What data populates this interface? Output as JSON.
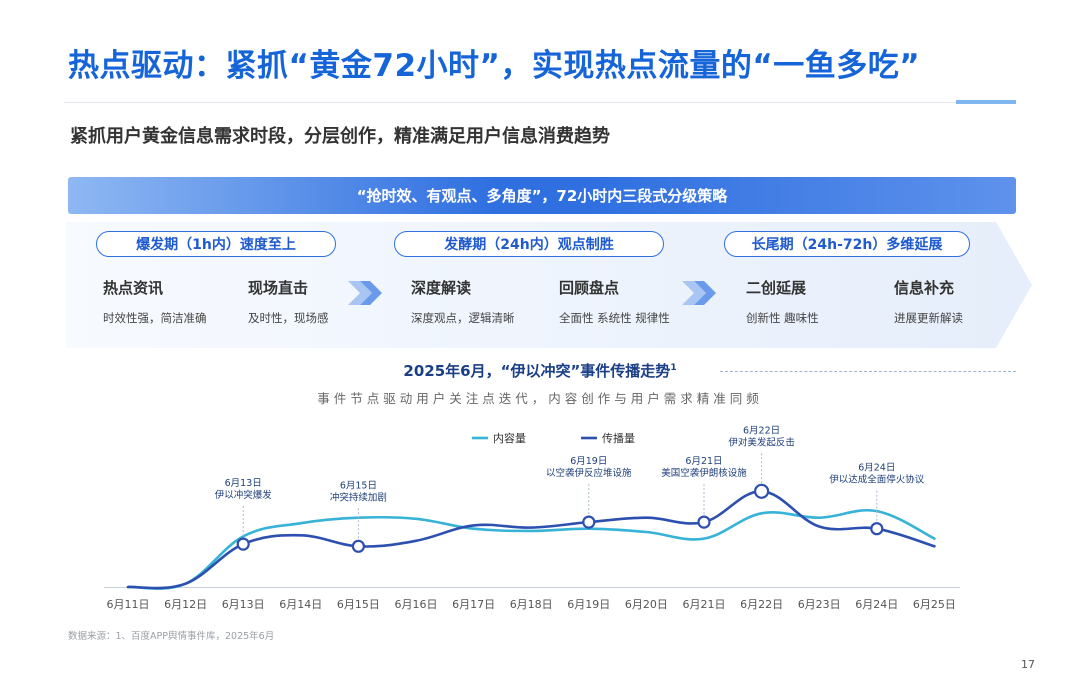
{
  "header": {
    "title": "热点驱动：紧抓“黄金72小时”，实现热点流量的“一鱼多吃”",
    "subtitle": "紧抓用户黄金信息需求时段，分层创作，精准满足用户信息消费趋势"
  },
  "banner": {
    "text": "“抢时效、有观点、多角度”，72小时内三段式分级策略"
  },
  "stages": [
    {
      "label": "爆发期（1h内）速度至上",
      "items": [
        {
          "title": "热点资讯",
          "desc": "时效性强，简洁准确"
        },
        {
          "title": "现场直击",
          "desc": "及时性，现场感"
        }
      ]
    },
    {
      "label": "发酵期（24h内）观点制胜",
      "items": [
        {
          "title": "深度解读",
          "desc": "深度观点，逻辑清晰"
        },
        {
          "title": "回顾盘点",
          "desc": "全面性 系统性 规律性"
        }
      ]
    },
    {
      "label": "长尾期（24h-72h）多维延展",
      "items": [
        {
          "title": "二创延展",
          "desc": "创新性 趣味性"
        },
        {
          "title": "信息补充",
          "desc": "进展更新解读"
        }
      ]
    }
  ],
  "chart_data": {
    "type": "line",
    "title": "2025年6月，“伊以冲突”事件传播走势",
    "title_sup": "1",
    "subtitle": "事件节点驱动用户关注点迭代，内容创作与用户需求精准同频",
    "categories": [
      "6月11日",
      "6月12日",
      "6月13日",
      "6月14日",
      "6月15日",
      "6月16日",
      "6月17日",
      "6月18日",
      "6月19日",
      "6月20日",
      "6月21日",
      "6月22日",
      "6月23日",
      "6月24日",
      "6月25日"
    ],
    "ylim": [
      0,
      100
    ],
    "grid": false,
    "legend": "top-center",
    "series": [
      {
        "name": "内容量",
        "color": "#36b3d6",
        "values": [
          0,
          3,
          46,
          58,
          63,
          62,
          53,
          51,
          53,
          50,
          44,
          67,
          63,
          69,
          44
        ]
      },
      {
        "name": "传播量",
        "color": "#2c4fb0",
        "values": [
          0,
          3,
          39,
          47,
          37,
          42,
          56,
          54,
          59,
          63,
          59,
          87,
          55,
          53,
          37
        ]
      }
    ],
    "annotations": [
      {
        "x": "6月13日",
        "lines": [
          "6月13日",
          "伊以冲突爆发"
        ]
      },
      {
        "x": "6月15日",
        "lines": [
          "6月15日",
          "冲突持续加剧"
        ]
      },
      {
        "x": "6月19日",
        "lines": [
          "6月19日",
          "以空袭伊反应堆设施"
        ]
      },
      {
        "x": "6月21日",
        "lines": [
          "6月21日",
          "美国空袭伊朗核设施"
        ]
      },
      {
        "x": "6月22日",
        "lines": [
          "6月22日",
          "伊对美发起反击"
        ]
      },
      {
        "x": "6月24日",
        "lines": [
          "6月24日",
          "伊以达成全面停火协议"
        ]
      }
    ]
  },
  "footer": {
    "source": "数据来源：1、百度APP舆情事件库，2025年6月",
    "page_number": "17"
  }
}
